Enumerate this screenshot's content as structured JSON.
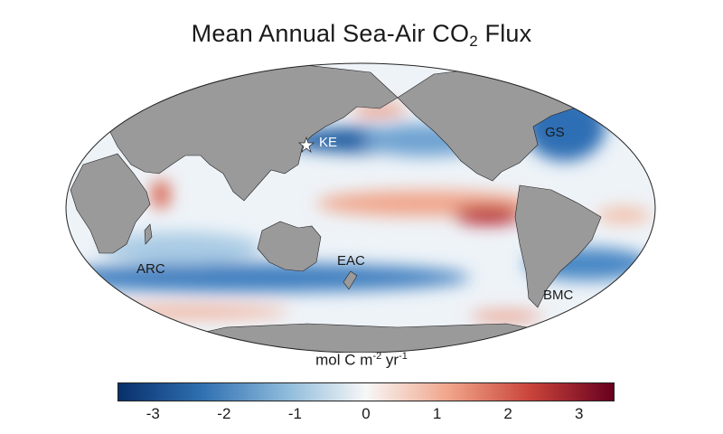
{
  "title": {
    "main": "Mean Annual Sea-Air CO",
    "subscript": "2",
    "suffix": " Flux"
  },
  "colorbar": {
    "unit_parts": [
      "mol C m",
      "-2",
      " yr",
      "-1"
    ],
    "range": [
      -3.5,
      3.5
    ],
    "ticks": [
      {
        "value": -3,
        "label": "-3"
      },
      {
        "value": -2,
        "label": "-2"
      },
      {
        "value": -1,
        "label": "-1"
      },
      {
        "value": 0,
        "label": "0"
      },
      {
        "value": 1,
        "label": "1"
      },
      {
        "value": 2,
        "label": "2"
      },
      {
        "value": 3,
        "label": "3"
      }
    ],
    "colors": [
      "#08306b",
      "#2f6fb0",
      "#8ab8da",
      "#f7f7f7",
      "#f0a58a",
      "#c9433a",
      "#67001f"
    ]
  },
  "regions": [
    {
      "label": "KE"
    },
    {
      "label": "GS"
    },
    {
      "label": "ARC"
    },
    {
      "label": "EAC"
    },
    {
      "label": "BMC"
    }
  ],
  "colors": {
    "land": "#9a9a9a",
    "coast": "#222222",
    "ocean_neutral": "#f4f4f4"
  }
}
